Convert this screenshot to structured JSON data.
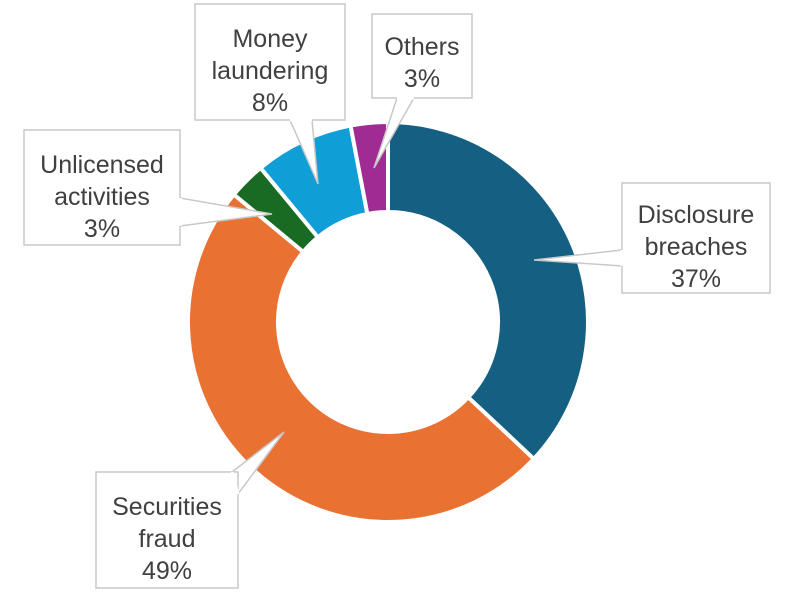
{
  "chart_data": {
    "type": "pie",
    "variant": "donut",
    "title": "",
    "slices": [
      {
        "label": "Disclosure breaches",
        "label_lines": [
          "Disclosure",
          "breaches"
        ],
        "value": 37,
        "display": "37%",
        "color": "#156082"
      },
      {
        "label": "Securities fraud",
        "label_lines": [
          "Securities",
          "fraud"
        ],
        "value": 49,
        "display": "49%",
        "color": "#E97132"
      },
      {
        "label": "Unlicensed activities",
        "label_lines": [
          "Unlicensed",
          "activities"
        ],
        "value": 3,
        "display": "3%",
        "color": "#196B24"
      },
      {
        "label": "Money laundering",
        "label_lines": [
          "Money",
          "laundering"
        ],
        "value": 8,
        "display": "8%",
        "color": "#0F9ED5"
      },
      {
        "label": "Others",
        "label_lines": [
          "Others"
        ],
        "value": 3,
        "display": "3%",
        "color": "#A02B93"
      }
    ],
    "legend": "none",
    "data_labels": "callouts"
  }
}
